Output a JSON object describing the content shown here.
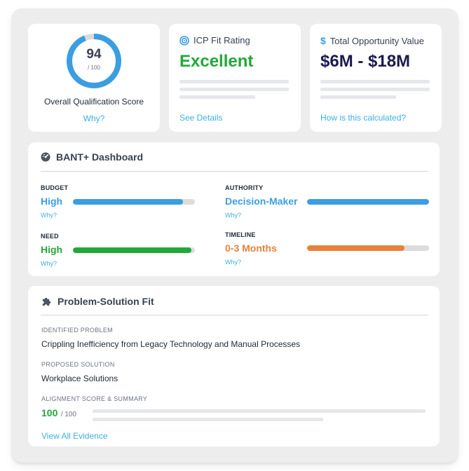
{
  "colors": {
    "accent_link": "#3ab0e2",
    "blue": "#3b9ee0",
    "green": "#22a83a",
    "orange": "#e8823a",
    "navy": "#1c1a4f"
  },
  "score_card": {
    "value": "94",
    "denominator": "/ 100",
    "fraction": 0.94,
    "label": "Overall Qualification Score",
    "why": "Why?"
  },
  "icp_card": {
    "icon": "target-icon",
    "title": "ICP Fit Rating",
    "rating": "Excellent",
    "link": "See Details"
  },
  "value_card": {
    "icon": "dollar-icon",
    "title": "Total Opportunity Value",
    "value": "$6M - $18M",
    "link": "How is this calculated?"
  },
  "bant": {
    "icon": "gauge-icon",
    "title": "BANT+ Dashboard",
    "budget": {
      "label": "BUDGET",
      "value": "High",
      "why": "Why?",
      "fraction": 0.9,
      "color": "#3b9ee0"
    },
    "authority": {
      "label": "AUTHORITY",
      "value": "Decision-Maker",
      "why": "Why?",
      "fraction": 1.0,
      "color": "#3b9ee0"
    },
    "need": {
      "label": "NEED",
      "value": "High",
      "why": "Why?",
      "fraction": 0.97,
      "color": "#22a83a"
    },
    "timeline": {
      "label": "TIMELINE",
      "value": "0-3 Months",
      "why": "Why?",
      "fraction": 0.8,
      "color": "#e8823a"
    }
  },
  "problem_solution": {
    "icon": "puzzle-icon",
    "title": "Problem-Solution Fit",
    "problem_label": "IDENTIFIED PROBLEM",
    "problem_text": "Crippling Inefficiency from Legacy Technology and Manual Processes",
    "solution_label": "PROPOSED SOLUTION",
    "solution_text": "Workplace Solutions",
    "alignment_label": "ALIGNMENT SCORE & SUMMARY",
    "alignment_value": "100",
    "alignment_denominator": "/ 100",
    "view_all": "View All Evidence"
  }
}
